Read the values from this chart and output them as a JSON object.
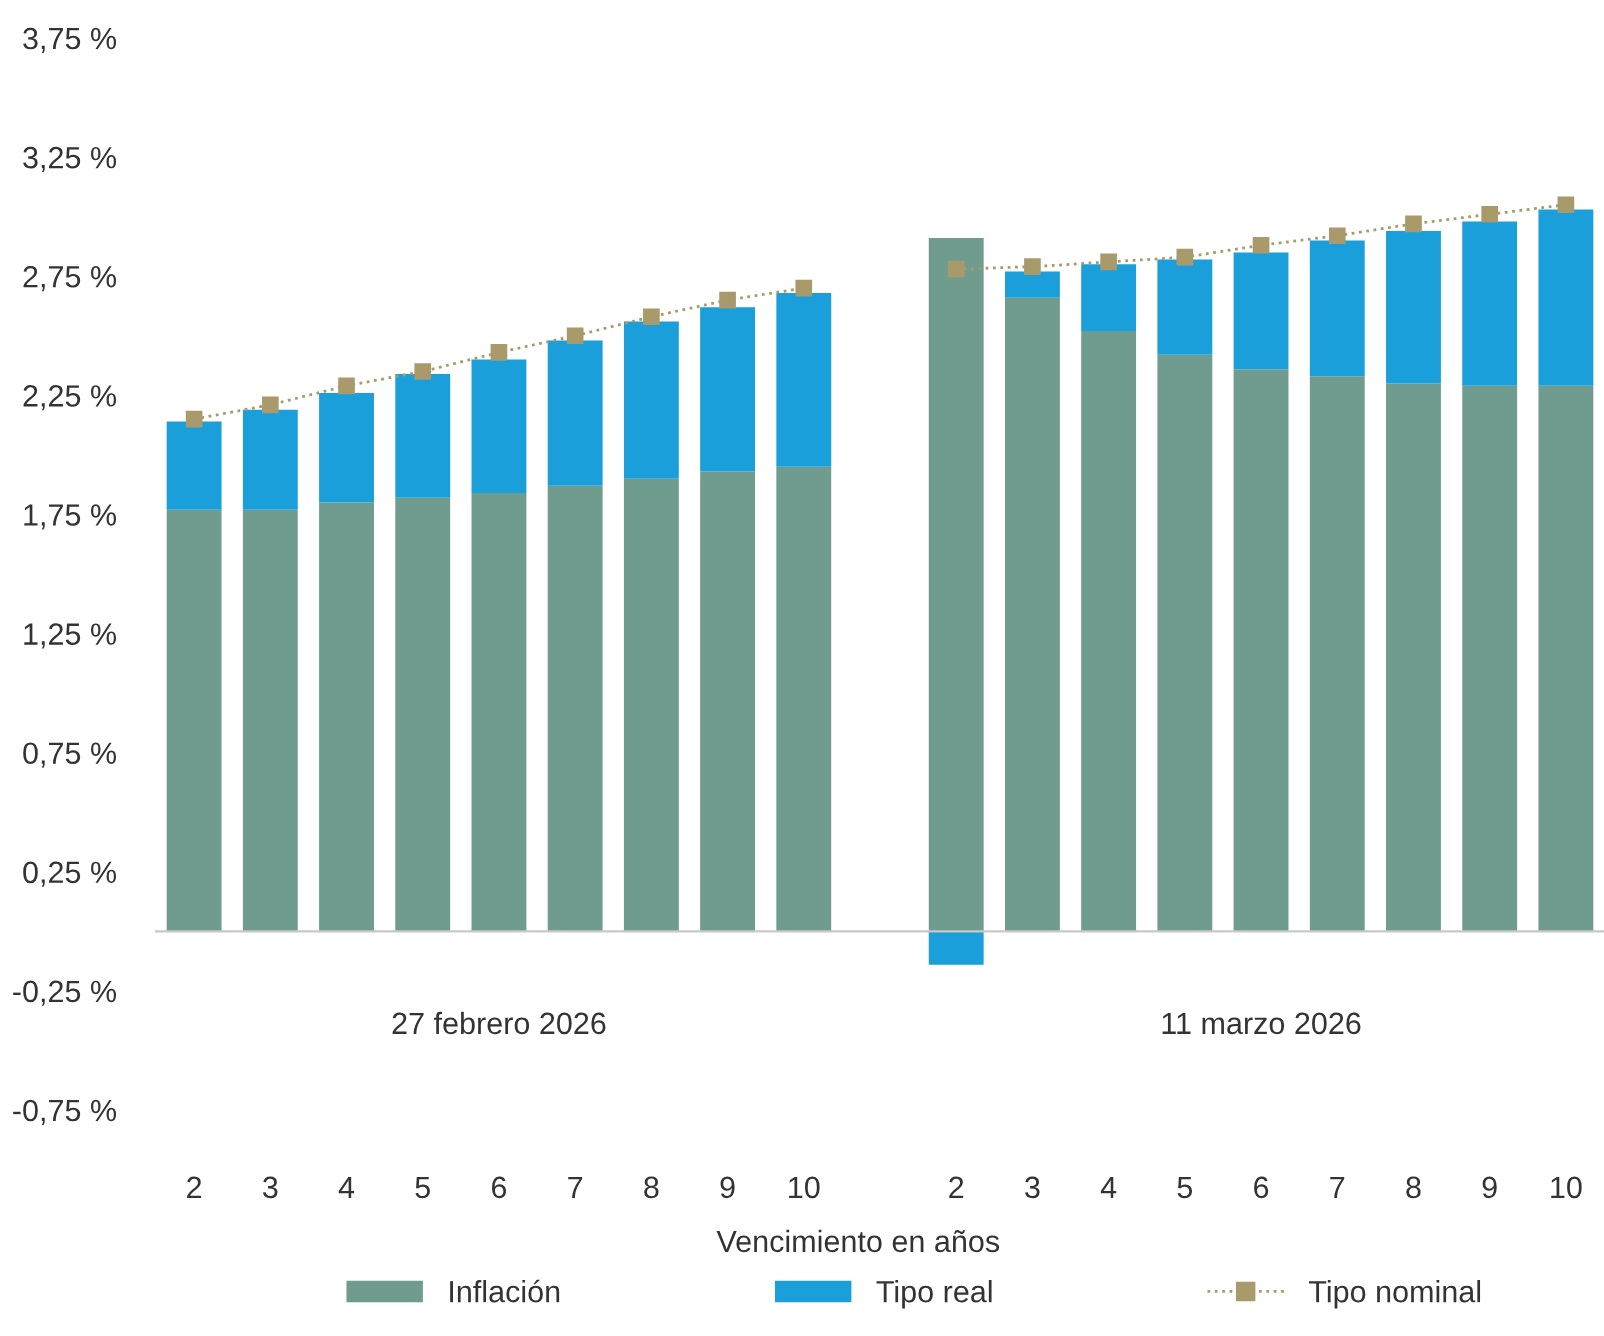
{
  "chart_data": {
    "type": "bar",
    "stacked": true,
    "xlabel": "Vencimiento en años",
    "categories": [
      "2",
      "3",
      "4",
      "5",
      "6",
      "7",
      "8",
      "9",
      "10",
      null,
      "2",
      "3",
      "4",
      "5",
      "6",
      "7",
      "8",
      "9",
      "10"
    ],
    "series": [
      {
        "name": "Inflación",
        "color": "#6f9c8f",
        "values": [
          1.77,
          1.77,
          1.8,
          1.82,
          1.84,
          1.87,
          1.9,
          1.93,
          1.95,
          null,
          2.91,
          2.66,
          2.52,
          2.42,
          2.36,
          2.33,
          2.3,
          2.29,
          2.29
        ]
      },
      {
        "name": "Tipo real",
        "color": "#1a9fdb",
        "values": [
          0.37,
          0.42,
          0.46,
          0.52,
          0.56,
          0.61,
          0.66,
          0.69,
          0.73,
          null,
          -0.14,
          0.11,
          0.28,
          0.4,
          0.49,
          0.57,
          0.64,
          0.69,
          0.74
        ]
      },
      {
        "name": "Tipo nominal",
        "type": "line",
        "color": "#a89a6a",
        "marker": "square",
        "line_style": "dotted",
        "values": [
          2.15,
          2.21,
          2.29,
          2.35,
          2.43,
          2.5,
          2.58,
          2.65,
          2.7,
          null,
          2.78,
          2.79,
          2.81,
          2.83,
          2.88,
          2.92,
          2.97,
          3.01,
          3.05
        ]
      }
    ],
    "ylim": [
      -0.75,
      3.75
    ],
    "yticks": [
      {
        "value": -0.75,
        "label": "-0,75 %"
      },
      {
        "value": -0.25,
        "label": "-0,25 %"
      },
      {
        "value": 0.25,
        "label": "0,25 %"
      },
      {
        "value": 0.75,
        "label": "0,75 %"
      },
      {
        "value": 1.25,
        "label": "1,25 %"
      },
      {
        "value": 1.75,
        "label": "1,75 %"
      },
      {
        "value": 2.25,
        "label": "2,25 %"
      },
      {
        "value": 2.75,
        "label": "2,75 %"
      },
      {
        "value": 3.25,
        "label": "3,25 %"
      },
      {
        "value": 3.75,
        "label": "3,75 %"
      }
    ],
    "annotations": [
      "27 febrero 2026",
      "11 marzo 2026"
    ],
    "grid": false,
    "legend": "bottom"
  }
}
